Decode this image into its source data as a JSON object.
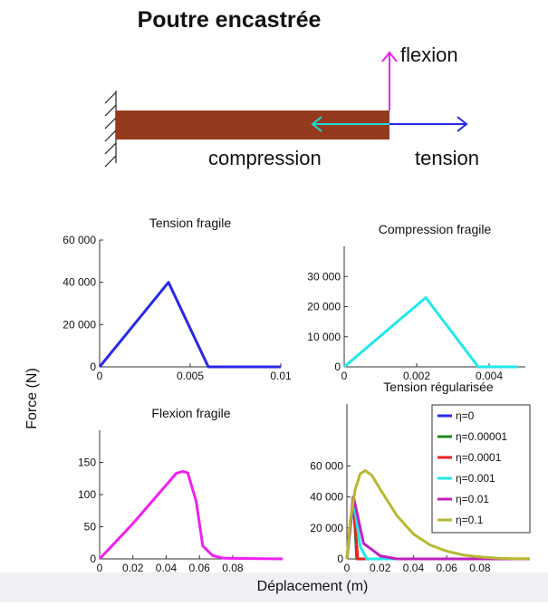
{
  "diagram": {
    "title": "Poutre encastrée",
    "flexion": "flexion",
    "compression": "compression",
    "tension": "tension"
  },
  "ylabel": "Force (N)",
  "xlabel": "Déplacement (m)",
  "chart_data": [
    {
      "type": "line",
      "title": "Tension fragile",
      "color": "#2929e8",
      "x": [
        0,
        0.0038,
        0.006,
        0.01
      ],
      "values": [
        0,
        40000,
        0,
        0
      ],
      "xlim": [
        0,
        0.01
      ],
      "xticks": [
        0,
        0.005,
        0.01
      ],
      "ylim": [
        0,
        60000
      ],
      "yticks": [
        0,
        {
          "value": 20000,
          "label": "20 000"
        },
        {
          "value": 40000,
          "label": "40 000"
        },
        {
          "value": 60000,
          "label": "60 000"
        }
      ]
    },
    {
      "type": "line",
      "title": "Compression fragile",
      "color": "#22e8e8",
      "x": [
        0,
        0.00225,
        0.0037,
        0.0048
      ],
      "values": [
        0,
        23000,
        0,
        0
      ],
      "xlim": [
        0,
        0.005
      ],
      "xticks": [
        0,
        0.002,
        0.004
      ],
      "ylim": [
        0,
        40000
      ],
      "yticks": [
        0,
        {
          "value": 10000,
          "label": "10 000"
        },
        {
          "value": 20000,
          "label": "20 000"
        },
        {
          "value": 30000,
          "label": "30 000"
        }
      ]
    },
    {
      "type": "line",
      "title": "Flexion fragile",
      "color": "#f020f0",
      "x": [
        0,
        0.02,
        0.04,
        0.046,
        0.05,
        0.053,
        0.058,
        0.062,
        0.068,
        0.075,
        0.11
      ],
      "values": [
        0,
        55,
        115,
        133,
        136,
        134,
        90,
        20,
        5,
        1,
        0
      ],
      "xlim": [
        0,
        0.11
      ],
      "xticks": [
        0,
        0.02,
        0.04,
        0.06,
        0.08
      ],
      "ylim": [
        0,
        200
      ],
      "yticks": [
        0,
        50,
        100,
        150
      ]
    },
    {
      "type": "line",
      "title": "Tension régularisée",
      "legend": "upper right",
      "xlim": [
        0,
        0.11
      ],
      "xticks": [
        0,
        0.02,
        0.04,
        0.06,
        0.08
      ],
      "ylim": [
        0,
        100000
      ],
      "yticks": [
        0,
        {
          "value": 20000,
          "label": "20 000"
        },
        {
          "value": 40000,
          "label": "40 000"
        },
        {
          "value": 60000,
          "label": "60 000"
        }
      ],
      "series": [
        {
          "name": "η=0",
          "color": "#2929e8",
          "x": [
            0,
            0.0038,
            0.006,
            0.11
          ],
          "values": [
            0,
            40000,
            0,
            0
          ]
        },
        {
          "name": "η=0.00001",
          "color": "#1a8a1a",
          "x": [
            0,
            0.0038,
            0.006,
            0.11
          ],
          "values": [
            0,
            40000,
            0,
            0
          ]
        },
        {
          "name": "η=0.0001",
          "color": "#f02020",
          "x": [
            0,
            0.0038,
            0.0065,
            0.11
          ],
          "values": [
            0,
            40000,
            0,
            0
          ]
        },
        {
          "name": "η=0.001",
          "color": "#22e8e8",
          "x": [
            0,
            0.004,
            0.008,
            0.012,
            0.11
          ],
          "values": [
            0,
            38000,
            8000,
            0,
            0
          ]
        },
        {
          "name": "η=0.01",
          "color": "#c020c0",
          "x": [
            0,
            0.004,
            0.01,
            0.02,
            0.03,
            0.11
          ],
          "values": [
            0,
            40000,
            10000,
            2000,
            0,
            0
          ]
        },
        {
          "name": "η=0.1",
          "color": "#b8b832",
          "x": [
            0,
            0.002,
            0.005,
            0.008,
            0.011,
            0.015,
            0.02,
            0.03,
            0.04,
            0.05,
            0.06,
            0.07,
            0.08,
            0.09,
            0.1,
            0.11
          ],
          "values": [
            0,
            25000,
            45000,
            55000,
            57000,
            54000,
            45000,
            28000,
            16000,
            9000,
            5000,
            2500,
            1200,
            500,
            200,
            100
          ]
        }
      ]
    }
  ]
}
